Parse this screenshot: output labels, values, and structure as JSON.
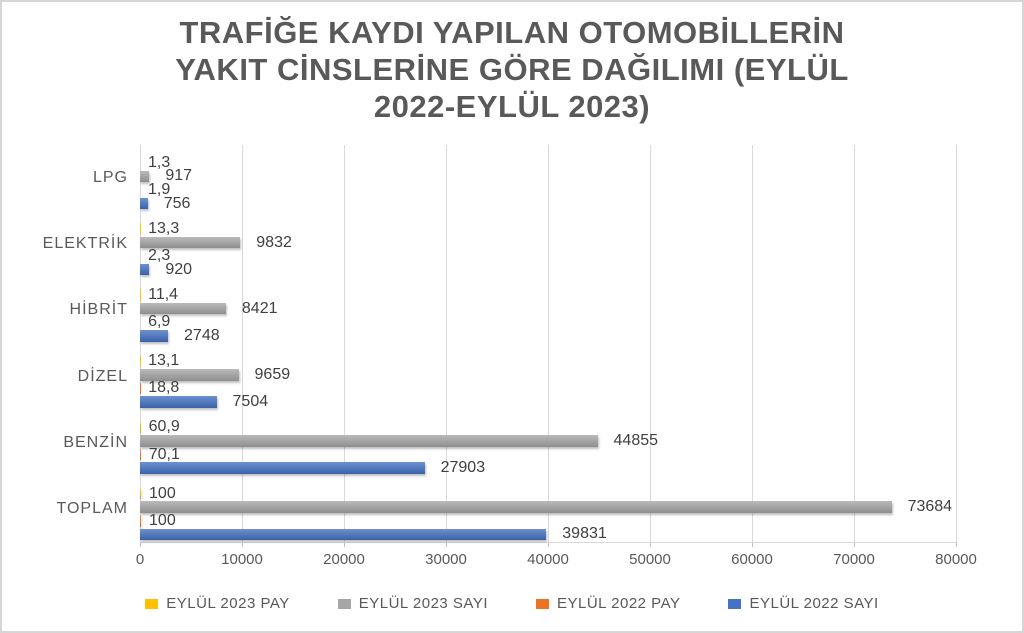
{
  "title": {
    "lines": [
      "TRAFİĞE KAYDI YAPILAN OTOMOBİLLERİN",
      "YAKIT CİNSLERİNE GÖRE DAĞILIMI (EYLÜL",
      "2022-EYLÜL 2023)"
    ]
  },
  "colors": {
    "title_text": "#595959",
    "axis_text": "#595959",
    "data_label_text": "#404040",
    "gridline": "#d9d9d9",
    "series_yellow": "#FFC000",
    "series_gray": "#A6A6A6",
    "series_orange": "#ED7224",
    "series_blue": "#4472C4"
  },
  "chart_data": {
    "type": "bar",
    "orientation": "horizontal",
    "title": "TRAFİĞE KAYDI YAPILAN OTOMOBİLLERİN YAKIT CİNSLERİNE GÖRE DAĞILIMI (EYLÜL 2022-EYLÜL 2023)",
    "categories": [
      "LPG",
      "ELEKTRİK",
      "HİBRİT",
      "DİZEL",
      "BENZİN",
      "TOPLAM"
    ],
    "series": [
      {
        "name": "EYLÜL 2023 PAY",
        "color": "#FFC000",
        "values": [
          1.3,
          13.3,
          11.4,
          13.1,
          60.9,
          100
        ],
        "labels": [
          "1,3",
          "13,3",
          "11,4",
          "13,1",
          "60,9",
          "100"
        ]
      },
      {
        "name": "EYLÜL 2023 SAYI",
        "color": "#A6A6A6",
        "values": [
          917,
          9832,
          8421,
          9659,
          44855,
          73684
        ],
        "labels": [
          "917",
          "9832",
          "8421",
          "9659",
          "44855",
          "73684"
        ]
      },
      {
        "name": "EYLÜL 2022 PAY",
        "color": "#ED7224",
        "values": [
          1.9,
          2.3,
          6.9,
          18.8,
          70.1,
          100
        ],
        "labels": [
          "1,9",
          "2,3",
          "6,9",
          "18,8",
          "70,1",
          "100"
        ]
      },
      {
        "name": "EYLÜL 2022 SAYI",
        "color": "#4472C4",
        "values": [
          756,
          920,
          2748,
          7504,
          27903,
          39831
        ],
        "labels": [
          "756",
          "920",
          "2748",
          "7504",
          "27903",
          "39831"
        ]
      }
    ],
    "x_axis": {
      "min": 0,
      "max": 80000,
      "tick_labels": [
        "0",
        "10000",
        "20000",
        "30000",
        "40000",
        "50000",
        "60000",
        "70000",
        "80000"
      ]
    },
    "ylim": [
      0,
      80000
    ],
    "grid": "vertical",
    "legend_position": "bottom",
    "data_labels": "outside-end"
  }
}
